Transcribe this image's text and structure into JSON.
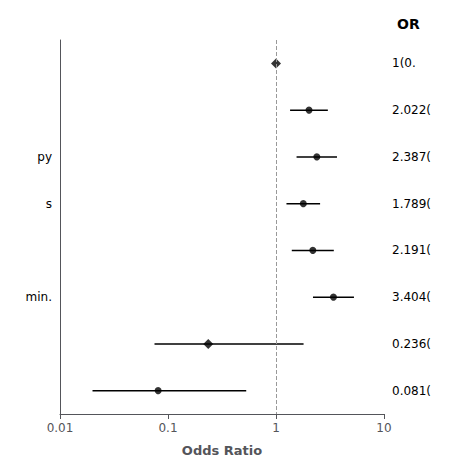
{
  "chart_data": {
    "type": "forest",
    "title": "OR",
    "x_label": "Odds Ratio",
    "categories": [
      null,
      null,
      "py",
      "s",
      null,
      "min.",
      null,
      null
    ],
    "values": [
      1.0,
      2.022,
      2.387,
      1.789,
      2.191,
      3.404,
      0.236,
      0.081
    ],
    "ci_lo": [
      1.0,
      1.35,
      1.55,
      1.25,
      1.4,
      2.2,
      0.075,
      0.02
    ],
    "ci_hi": [
      1.0,
      3.02,
      3.67,
      2.56,
      3.43,
      5.27,
      1.8,
      0.53
    ],
    "value_labels": [
      "1(0.",
      "2.022(",
      "2.387(",
      "1.789(",
      "2.191(",
      "3.404(",
      "0.236(",
      "0.081("
    ],
    "markers": [
      "diamond",
      "circle",
      "circle",
      "circle",
      "circle",
      "circle",
      "diamond",
      "circle"
    ],
    "color": "#000000",
    "reference_line": {
      "value": 1.0,
      "color": "#999999",
      "line_style": "dashed"
    },
    "log": "x",
    "xlim": [
      0.01,
      10
    ],
    "xticks": [
      0.01,
      0.1,
      1,
      10
    ],
    "grid": false
  }
}
